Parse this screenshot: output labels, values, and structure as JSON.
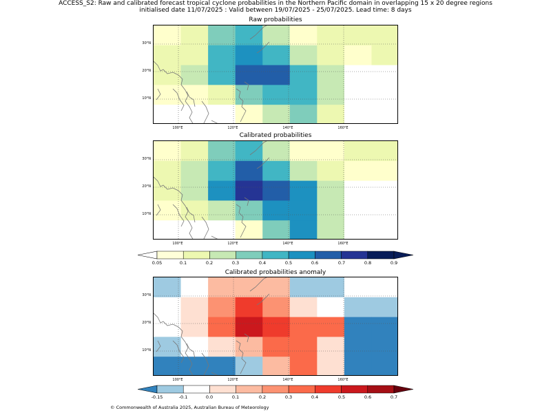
{
  "header": {
    "line1": "ACCESS_S2: Raw and calibrated forecast tropical cyclone probabilities in the Northern Pacific domain in overlapping 15 x 20 degree regions",
    "line2": "initialised date 11/07/2025 :  Valid between 19/07/2025 - 25/07/2025. Lead time: 8 days"
  },
  "axes": {
    "lat_labels": [
      "30°N",
      "20°N",
      "10°N"
    ],
    "lon_labels": [
      "100°E",
      "120°E",
      "140°E",
      "160°E"
    ]
  },
  "panels": [
    {
      "title": "Raw probabilities",
      "grid": [
        [
          "#ffffcc",
          "#edf8b1",
          "#7fcdbb",
          "#41b6c4",
          "#c7e9b4",
          "#ffffcc",
          "#edf8b1",
          "#edf8b1",
          "#edf8b1"
        ],
        [
          "#edf8b1",
          "#edf8b1",
          "#41b6c4",
          "#1d91c0",
          "#41b6c4",
          "#c7e9b4",
          "#edf8b1",
          "#ffffcc",
          "#edf8b1"
        ],
        [
          "#edf8b1",
          "#c7e9b4",
          "#41b6c4",
          "#225ea8",
          "#225ea8",
          "#41b6c4",
          "#c7e9b4",
          "#ffffff",
          "#ffffff"
        ],
        [
          "#ffffcc",
          "#ffffcc",
          "#edf8b1",
          "#7fcdbb",
          "#41b6c4",
          "#41b6c4",
          "#c7e9b4",
          "#ffffff",
          "#ffffff"
        ],
        [
          "#ffffff",
          "#ffffff",
          "#ffffff",
          "#ffffcc",
          "#c7e9b4",
          "#7fcdbb",
          "#edf8b1",
          "#ffffff",
          "#ffffff"
        ]
      ]
    },
    {
      "title": "Calibrated probabilities",
      "grid": [
        [
          "#ffffcc",
          "#edf8b1",
          "#7fcdbb",
          "#41b6c4",
          "#c7e9b4",
          "#ffffcc",
          "#ffffcc",
          "#edf8b1",
          "#edf8b1"
        ],
        [
          "#edf8b1",
          "#c7e9b4",
          "#41b6c4",
          "#225ea8",
          "#41b6c4",
          "#c7e9b4",
          "#edf8b1",
          "#ffffcc",
          "#ffffcc"
        ],
        [
          "#edf8b1",
          "#c7e9b4",
          "#1d91c0",
          "#253494",
          "#225ea8",
          "#1d91c0",
          "#c7e9b4",
          "#ffffff",
          "#ffffff"
        ],
        [
          "#ffffcc",
          "#edf8b1",
          "#c7e9b4",
          "#7fcdbb",
          "#1d91c0",
          "#1d91c0",
          "#c7e9b4",
          "#ffffff",
          "#ffffff"
        ],
        [
          "#ffffff",
          "#ffffff",
          "#ffffff",
          "#ffffcc",
          "#7fcdbb",
          "#1d91c0",
          "#c7e9b4",
          "#ffffff",
          "#ffffff"
        ]
      ]
    },
    {
      "title": "Calibrated probabilities anomaly",
      "grid": [
        [
          "#9ecae1",
          "#ffffff",
          "#fcbba1",
          "#fcbba1",
          "#fcbba1",
          "#9ecae1",
          "#9ecae1",
          "#ffffff",
          "#ffffff"
        ],
        [
          "#ffffff",
          "#fee0d2",
          "#fc9272",
          "#ef3b2c",
          "#fc9272",
          "#fee0d2",
          "#ffffff",
          "#9ecae1",
          "#9ecae1"
        ],
        [
          "#ffffff",
          "#fee0d2",
          "#fb6a4a",
          "#cb181d",
          "#ef3b2c",
          "#fb6a4a",
          "#fb6a4a",
          "#3182bd",
          "#3182bd"
        ],
        [
          "#9ecae1",
          "#ffffff",
          "#fee0d2",
          "#fcbba1",
          "#fb6a4a",
          "#fb6a4a",
          "#fee0d2",
          "#3182bd",
          "#3182bd"
        ],
        [
          "#3182bd",
          "#3182bd",
          "#3182bd",
          "#9ecae1",
          "#fcbba1",
          "#fb6a4a",
          "#fee0d2",
          "#3182bd",
          "#3182bd"
        ]
      ]
    }
  ],
  "colorbars": [
    {
      "labels": [
        "0.05",
        "0.1",
        "0.2",
        "0.3",
        "0.4",
        "0.5",
        "0.6",
        "0.7",
        "0.8",
        "0.9"
      ],
      "colors": [
        "#ffffd9",
        "#edf8b1",
        "#c7e9b4",
        "#7fcdbb",
        "#41b6c4",
        "#1d91c0",
        "#225ea8",
        "#253494",
        "#081d58"
      ],
      "under": "#ffffff",
      "over": "#081d58"
    },
    {
      "labels": [
        "-0.15",
        "-0.1",
        "0.0",
        "0.1",
        "0.2",
        "0.3",
        "0.4",
        "0.5",
        "0.6",
        "0.7"
      ],
      "colors": [
        "#9ecae1",
        "#ffffff",
        "#fee0d2",
        "#fcbba1",
        "#fc9272",
        "#fb6a4a",
        "#ef3b2c",
        "#cb181d",
        "#a50f15"
      ],
      "under": "#3182bd",
      "over": "#67000d"
    }
  ],
  "footer": "© Commonwealth of Australia 2025, Australian Bureau of Meteorology"
}
